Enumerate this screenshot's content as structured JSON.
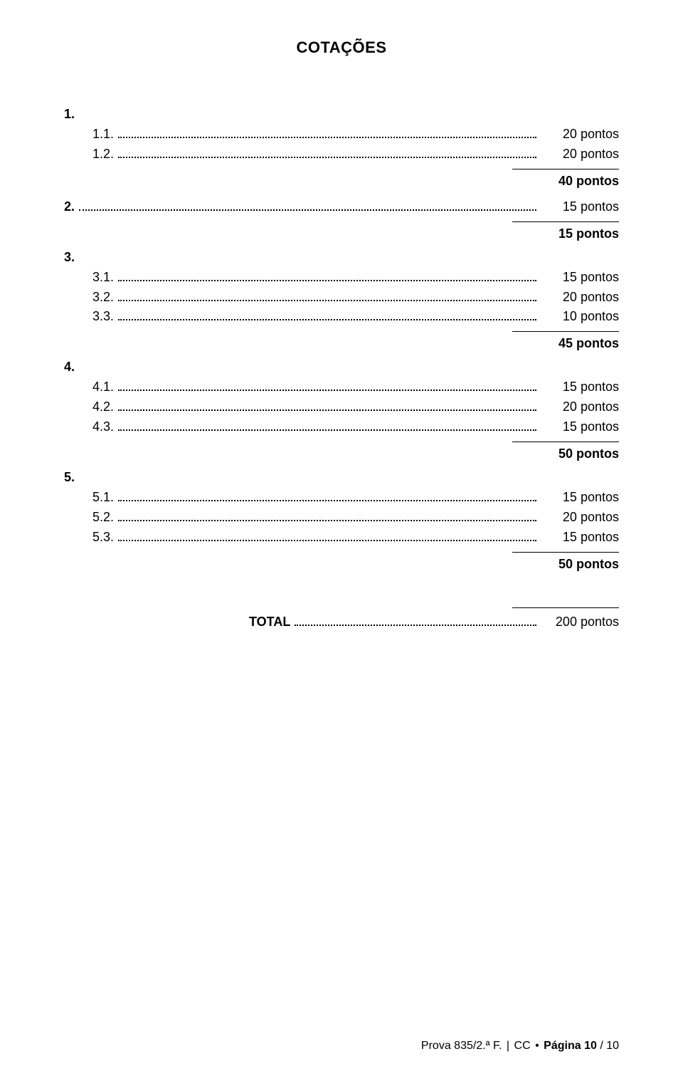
{
  "title": "COTAÇÕES",
  "sections": [
    {
      "num": "1.",
      "items": [
        {
          "label": "1.1.",
          "value": "20 pontos"
        },
        {
          "label": "1.2.",
          "value": "20 pontos"
        }
      ],
      "subtotal": "40 pontos"
    },
    {
      "num": "2.",
      "single": {
        "value": "15 pontos"
      },
      "subtotal": "15 pontos"
    },
    {
      "num": "3.",
      "items": [
        {
          "label": "3.1.",
          "value": "15 pontos"
        },
        {
          "label": "3.2.",
          "value": "20 pontos"
        },
        {
          "label": "3.3.",
          "value": "10 pontos"
        }
      ],
      "subtotal": "45 pontos"
    },
    {
      "num": "4.",
      "items": [
        {
          "label": "4.1.",
          "value": "15 pontos"
        },
        {
          "label": "4.2.",
          "value": "20 pontos"
        },
        {
          "label": "4.3.",
          "value": "15 pontos"
        }
      ],
      "subtotal": "50 pontos"
    },
    {
      "num": "5.",
      "items": [
        {
          "label": "5.1.",
          "value": "15 pontos"
        },
        {
          "label": "5.2.",
          "value": "20 pontos"
        },
        {
          "label": "5.3.",
          "value": "15 pontos"
        }
      ],
      "subtotal": "50 pontos"
    }
  ],
  "total_label": "TOTAL",
  "total_value": "200 pontos",
  "footer": {
    "prova": "Prova 835/2.ª F.",
    "cc": "CC",
    "pagina_label": "Página 10",
    "pagina_total": "/ 10"
  }
}
